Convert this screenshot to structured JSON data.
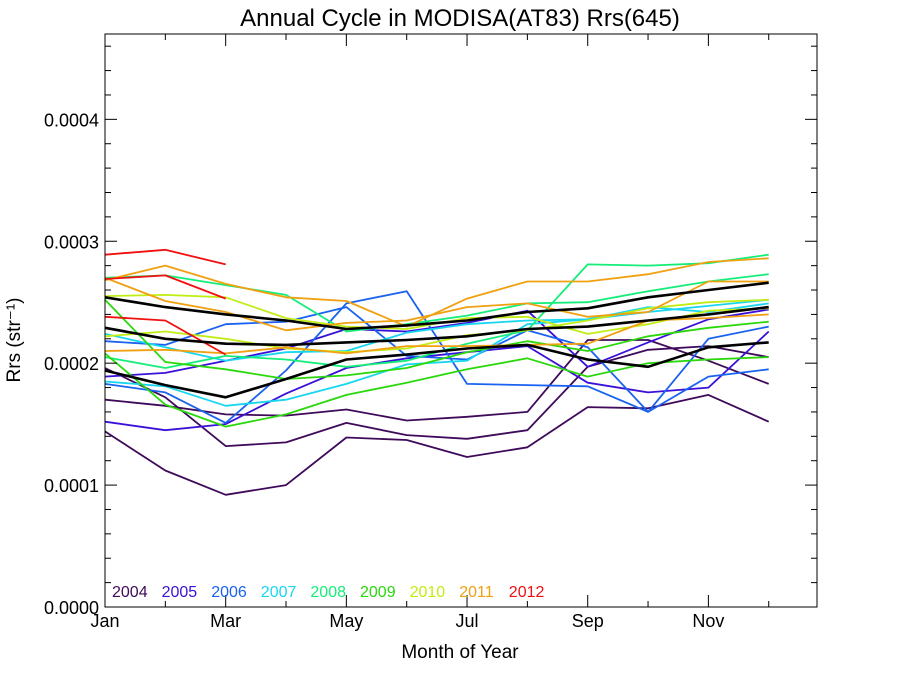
{
  "chart_data": {
    "type": "line",
    "title": "Annual Cycle in MODISA(AT83) Rrs(645)",
    "xlabel": "Month of Year",
    "ylabel": "Rrs (str⁻¹)",
    "x_ticks": [
      "Jan",
      "Mar",
      "May",
      "Jul",
      "Sep",
      "Nov"
    ],
    "y_ticks": [
      "0.0000",
      "0.0001",
      "0.0002",
      "0.0003",
      "0.0004"
    ],
    "xlim": [
      0,
      11.8
    ],
    "ylim": [
      0,
      0.00047
    ],
    "grid": false,
    "legend_position": "bottom-left",
    "series": [
      {
        "name": "2004",
        "color": "#3f0a5a",
        "lines": [
          [
            0.00017,
            0.000165,
            0.000158,
            0.000157,
            0.000162,
            0.000153,
            0.000156,
            0.00016,
            0.000219,
            0.000219,
            0.000202,
            0.000183
          ],
          [
            0.000144,
            0.000112,
            9.2e-05,
            0.0001,
            0.000139,
            0.000137,
            0.000123,
            0.000131,
            0.000164,
            0.000163,
            0.000174,
            0.000152
          ],
          [
            0.000196,
            0.000172,
            0.000132,
            0.000135,
            0.000151,
            0.000141,
            0.000138,
            0.000145,
            0.000197,
            0.000211,
            0.000214,
            0.000205
          ]
        ]
      },
      {
        "name": "2005",
        "color": "#3b10d8",
        "lines": [
          [
            0.000152,
            0.000145,
            0.00015,
            0.000175,
            0.000196,
            0.000204,
            0.000209,
            0.000214,
            0.000184,
            0.000176,
            0.00018,
            0.000226
          ],
          [
            0.000189,
            0.000192,
            0.000202,
            0.000212,
            0.000228,
            0.000226,
            0.000233,
            0.000243,
            0.000197,
            0.000217,
            0.000236,
            0.000244
          ]
        ]
      },
      {
        "name": "2006",
        "color": "#1a62f0",
        "lines": [
          [
            0.000183,
            0.000176,
            0.000151,
            0.000194,
            0.000249,
            0.000259,
            0.000183,
            0.000182,
            0.000181,
            0.00016,
            0.000189,
            0.000195
          ],
          [
            0.000218,
            0.000215,
            0.000232,
            0.000234,
            0.000246,
            0.000206,
            0.000203,
            0.000227,
            0.000213,
            0.00016,
            0.00022,
            0.00023
          ]
        ]
      },
      {
        "name": "2007",
        "color": "#18d6f0",
        "lines": [
          [
            0.000185,
            0.000181,
            0.000165,
            0.00017,
            0.000183,
            0.000199,
            0.000202,
            0.000232,
            0.000236,
            0.000246,
            0.000242,
            0.000249
          ],
          [
            0.000224,
            0.000213,
            0.000202,
            0.000209,
            0.00021,
            0.000225,
            0.000232,
            0.000235,
            0.000236,
            0.000242,
            0.000247,
            0.000252
          ]
        ]
      },
      {
        "name": "2008",
        "color": "#14ee78",
        "lines": [
          [
            0.000205,
            0.000196,
            0.000206,
            0.000203,
            0.000197,
            0.000202,
            0.000216,
            0.000227,
            0.000281,
            0.00028,
            0.000282,
            0.000289
          ],
          [
            0.00027,
            0.000272,
            0.000264,
            0.000256,
            0.000226,
            0.000232,
            0.000239,
            0.000249,
            0.00025,
            0.000259,
            0.000267,
            0.000273
          ]
        ]
      },
      {
        "name": "2009",
        "color": "#2ad80c",
        "lines": [
          [
            0.000208,
            0.000166,
            0.000148,
            0.000158,
            0.000174,
            0.000184,
            0.000195,
            0.000204,
            0.000189,
            0.0002,
            0.000203,
            0.000205
          ],
          [
            0.000252,
            0.000201,
            0.000195,
            0.000187,
            0.00019,
            0.000196,
            0.000209,
            0.000218,
            0.00021,
            0.000222,
            0.000229,
            0.000234
          ]
        ]
      },
      {
        "name": "2010",
        "color": "#c0ee14",
        "lines": [
          [
            0.000255,
            0.000256,
            0.000254,
            0.000237,
            0.00023,
            0.000228,
            0.000237,
            0.000238,
            0.000224,
            0.000232,
            0.000243,
            0.000245
          ],
          [
            0.000222,
            0.000226,
            0.00022,
            0.000212,
            0.000209,
            0.000212,
            0.000223,
            0.000227,
            0.000235,
            0.000245,
            0.00025,
            0.000252
          ]
        ]
      },
      {
        "name": "2011",
        "color": "#f0a010",
        "lines": [
          [
            0.000268,
            0.00028,
            0.000265,
            0.000254,
            0.000251,
            0.00023,
            0.000253,
            0.000267,
            0.000267,
            0.000273,
            0.000283,
            0.000286
          ],
          [
            0.00027,
            0.000251,
            0.000242,
            0.000227,
            0.000233,
            0.000235,
            0.000246,
            0.000249,
            0.000238,
            0.000242,
            0.000267,
            0.000267
          ],
          [
            0.00021,
            0.000211,
            0.000208,
            0.000213,
            0.000208,
            0.000214,
            0.000214,
            0.000215,
            0.000216,
            0.000235,
            0.000237,
            0.00024
          ]
        ]
      },
      {
        "name": "2012",
        "color": "#f01010",
        "lines": [
          [
            0.000289,
            0.000293,
            0.000281
          ],
          [
            0.000269,
            0.000272,
            0.000253
          ],
          [
            0.000238,
            0.000235,
            0.000207
          ]
        ]
      },
      {
        "name": "",
        "color": "#000000",
        "lines": [
          [
            0.000254,
            0.000246,
            0.00024,
            0.000235,
            0.000228,
            0.000231,
            0.000235,
            0.000242,
            0.000245,
            0.000254,
            0.00026,
            0.000266
          ],
          [
            0.000229,
            0.00022,
            0.000216,
            0.000215,
            0.000217,
            0.000219,
            0.000222,
            0.000228,
            0.00023,
            0.000235,
            0.00024,
            0.000246
          ],
          [
            0.000194,
            0.000182,
            0.000172,
            0.000187,
            0.000203,
            0.000207,
            0.000212,
            0.000215,
            0.000203,
            0.000197,
            0.000213,
            0.000217
          ]
        ]
      }
    ]
  }
}
